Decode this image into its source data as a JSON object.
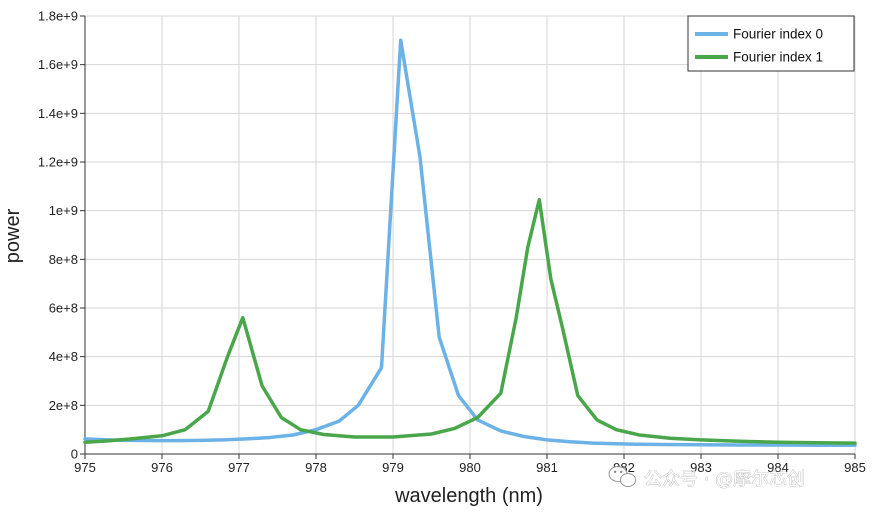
{
  "chart_data": {
    "type": "line",
    "xlabel": "wavelength (nm)",
    "ylabel": "power",
    "xlim": [
      975,
      985
    ],
    "ylim": [
      0,
      1800000000
    ],
    "xticks": [
      975,
      976,
      977,
      978,
      979,
      980,
      981,
      982,
      983,
      984,
      985
    ],
    "xtick_labels": [
      "975",
      "976",
      "977",
      "978",
      "979",
      "980",
      "981",
      "982",
      "983",
      "984",
      "985"
    ],
    "yticks": [
      0,
      200000000,
      400000000,
      600000000,
      800000000,
      1000000000,
      1200000000,
      1400000000,
      1600000000,
      1800000000
    ],
    "ytick_labels": [
      "0",
      "2e+8",
      "4e+8",
      "6e+8",
      "8e+8",
      "1e+9",
      "1.2e+9",
      "1.4e+9",
      "1.6e+9",
      "1.8e+9"
    ],
    "grid": true,
    "legend_position": "top-right",
    "series": [
      {
        "name": "Fourier index 0",
        "color": "#6cb2e6",
        "x": [
          975.0,
          975.3,
          975.6,
          975.9,
          976.2,
          976.5,
          976.8,
          977.1,
          977.4,
          977.7,
          978.0,
          978.3,
          978.55,
          978.85,
          979.1,
          979.35,
          979.6,
          979.85,
          980.1,
          980.4,
          980.7,
          981.0,
          981.3,
          981.6,
          981.9,
          982.2,
          982.5,
          983.0,
          983.5,
          984.0,
          984.5,
          985.0
        ],
        "y": [
          62000000,
          58000000,
          56000000,
          55000000,
          55000000,
          56000000,
          58000000,
          62000000,
          68000000,
          78000000,
          100000000,
          135000000,
          200000000,
          355000000,
          1700000000,
          1220000000,
          480000000,
          240000000,
          140000000,
          95000000,
          72000000,
          58000000,
          50000000,
          45000000,
          42000000,
          40000000,
          39000000,
          38000000,
          37000000,
          37000000,
          36000000,
          36000000
        ]
      },
      {
        "name": "Fourier index 1",
        "color": "#4aa64a",
        "x": [
          975.0,
          975.3,
          975.6,
          976.0,
          976.3,
          976.6,
          976.85,
          977.05,
          977.3,
          977.55,
          977.8,
          978.1,
          978.5,
          979.0,
          979.5,
          979.8,
          980.1,
          980.4,
          980.6,
          980.75,
          980.9,
          981.05,
          981.2,
          981.4,
          981.65,
          981.9,
          982.2,
          982.6,
          983.0,
          983.5,
          984.0,
          984.5,
          985.0
        ],
        "y": [
          48000000,
          54000000,
          62000000,
          75000000,
          100000000,
          175000000,
          400000000,
          560000000,
          280000000,
          150000000,
          100000000,
          80000000,
          70000000,
          70000000,
          82000000,
          105000000,
          150000000,
          250000000,
          560000000,
          850000000,
          1045000000,
          720000000,
          520000000,
          240000000,
          140000000,
          100000000,
          78000000,
          65000000,
          58000000,
          52000000,
          48000000,
          46000000,
          45000000
        ]
      }
    ]
  },
  "watermark": {
    "text": "公众号 · @摩尔芯创",
    "icon": "wechat-icon"
  }
}
